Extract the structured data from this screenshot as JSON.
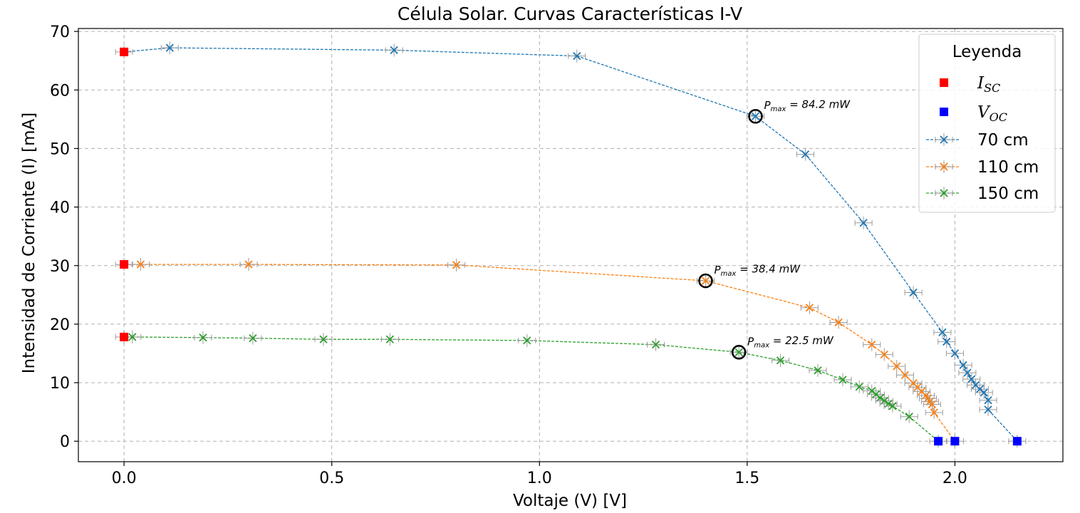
{
  "chart_data": {
    "type": "line",
    "title": "Célula Solar. Curvas Características I-V",
    "xlabel": "Voltaje (V) [V]",
    "ylabel": "Intensidad de  Corriente (I) [mA]",
    "xlim": [
      -0.11,
      2.26
    ],
    "ylim": [
      -3.5,
      70.5
    ],
    "xticks": [
      0.0,
      0.5,
      1.0,
      1.5,
      2.0
    ],
    "xtick_labels": [
      "0.0",
      "0.5",
      "1.0",
      "1.5",
      "2.0"
    ],
    "yticks": [
      0,
      10,
      20,
      30,
      40,
      50,
      60,
      70
    ],
    "ytick_labels": [
      "0",
      "10",
      "20",
      "30",
      "40",
      "50",
      "60",
      "70"
    ],
    "grid": true,
    "legend": {
      "title": "Leyenda",
      "placement": "top-right",
      "entries": [
        {
          "label_base": "I",
          "label_sub": "SC",
          "color": "#ff0000",
          "marker": "square"
        },
        {
          "label_base": "V",
          "label_sub": "OC",
          "color": "#0000ff",
          "marker": "square"
        },
        {
          "label": "70 cm",
          "color": "#1f77b4",
          "marker": "x"
        },
        {
          "label": "110 cm",
          "color": "#ff7f0e",
          "marker": "x"
        },
        {
          "label": "150 cm",
          "color": "#2ca02c",
          "marker": "x"
        }
      ]
    },
    "series": [
      {
        "name": "70 cm",
        "color": "#1f77b4",
        "x": [
          0.0,
          0.11,
          0.65,
          1.09,
          1.52,
          1.64,
          1.78,
          1.9,
          1.97,
          1.98,
          2.0,
          2.02,
          2.03,
          2.04,
          2.05,
          2.06,
          2.07,
          2.08,
          2.08,
          2.15
        ],
        "y": [
          66.5,
          67.2,
          66.8,
          65.8,
          55.5,
          49.0,
          37.3,
          25.4,
          18.6,
          17.0,
          15.0,
          13.0,
          11.7,
          10.6,
          9.6,
          8.9,
          8.3,
          7.0,
          5.4,
          0.0
        ]
      },
      {
        "name": "110 cm",
        "color": "#ff7f0e",
        "x": [
          0.0,
          0.04,
          0.3,
          0.8,
          1.4,
          1.65,
          1.72,
          1.8,
          1.83,
          1.86,
          1.88,
          1.9,
          1.91,
          1.92,
          1.93,
          1.935,
          1.94,
          1.945,
          1.95,
          2.0
        ],
        "y": [
          30.2,
          30.2,
          30.2,
          30.1,
          27.4,
          22.8,
          20.3,
          16.5,
          14.8,
          12.8,
          11.3,
          9.9,
          9.2,
          8.5,
          7.8,
          7.3,
          6.8,
          6.3,
          4.9,
          0.0
        ]
      },
      {
        "name": "150 cm",
        "color": "#2ca02c",
        "x": [
          0.0,
          0.02,
          0.19,
          0.31,
          0.48,
          0.64,
          0.97,
          1.28,
          1.48,
          1.58,
          1.67,
          1.73,
          1.77,
          1.8,
          1.81,
          1.82,
          1.83,
          1.84,
          1.85,
          1.89,
          1.96
        ],
        "y": [
          17.8,
          17.8,
          17.7,
          17.6,
          17.4,
          17.4,
          17.2,
          16.5,
          15.2,
          13.8,
          12.1,
          10.5,
          9.3,
          8.6,
          8.0,
          7.4,
          6.9,
          6.4,
          6.0,
          4.2,
          0.0
        ]
      }
    ],
    "isc_points": [
      {
        "x": 0.0,
        "y": 66.5
      },
      {
        "x": 0.0,
        "y": 30.2
      },
      {
        "x": 0.0,
        "y": 17.8
      }
    ],
    "voc_points": [
      {
        "x": 2.15,
        "y": 0.0
      },
      {
        "x": 2.0,
        "y": 0.0
      },
      {
        "x": 1.96,
        "y": 0.0
      }
    ],
    "pmax_points": [
      {
        "x": 1.52,
        "y": 55.5,
        "label_base": "P",
        "label_sub": "max",
        "label_value": " = 84.2 mW"
      },
      {
        "x": 1.4,
        "y": 27.4,
        "label_base": "P",
        "label_sub": "max",
        "label_value": " = 38.4 mW"
      },
      {
        "x": 1.48,
        "y": 15.2,
        "label_base": "P",
        "label_sub": "max",
        "label_value": " = 22.5 mW"
      }
    ]
  }
}
